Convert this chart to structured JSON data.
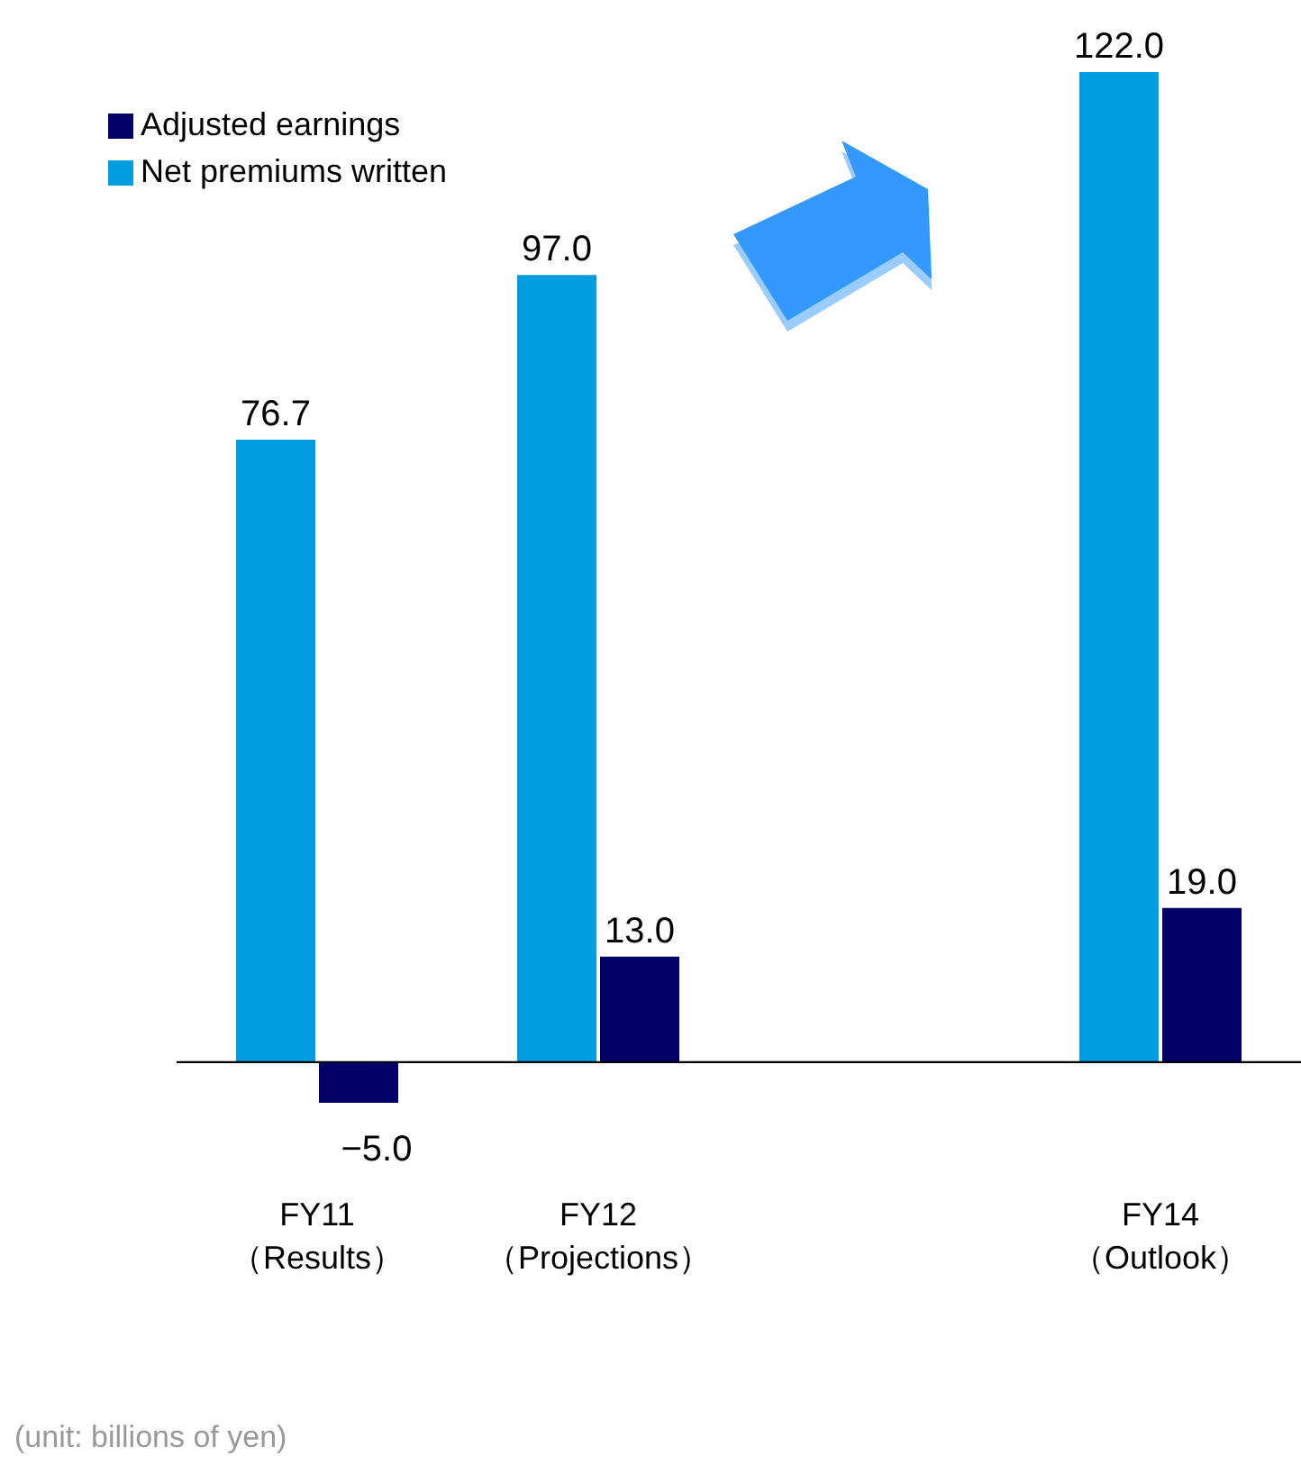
{
  "chart_data": {
    "type": "bar",
    "categories": [
      "FY11\n（Results）",
      "FY12\n（Projections）",
      null,
      "FY14\n（Outlook）"
    ],
    "series": [
      {
        "name": "Net premiums written",
        "color": "#009de0",
        "values": [
          76.7,
          97.0,
          null,
          122.0
        ],
        "value_labels": [
          "76.7",
          "97.0",
          null,
          "122.0"
        ]
      },
      {
        "name": "Adjusted earnings",
        "color": "#000066",
        "values": [
          -5.0,
          13.0,
          null,
          19.0
        ],
        "value_labels": [
          "−5.0",
          "13.0",
          null,
          "19.0"
        ]
      }
    ],
    "legend": "top left",
    "grid": false,
    "annotations": [
      "(unit: billions of yen)"
    ]
  }
}
